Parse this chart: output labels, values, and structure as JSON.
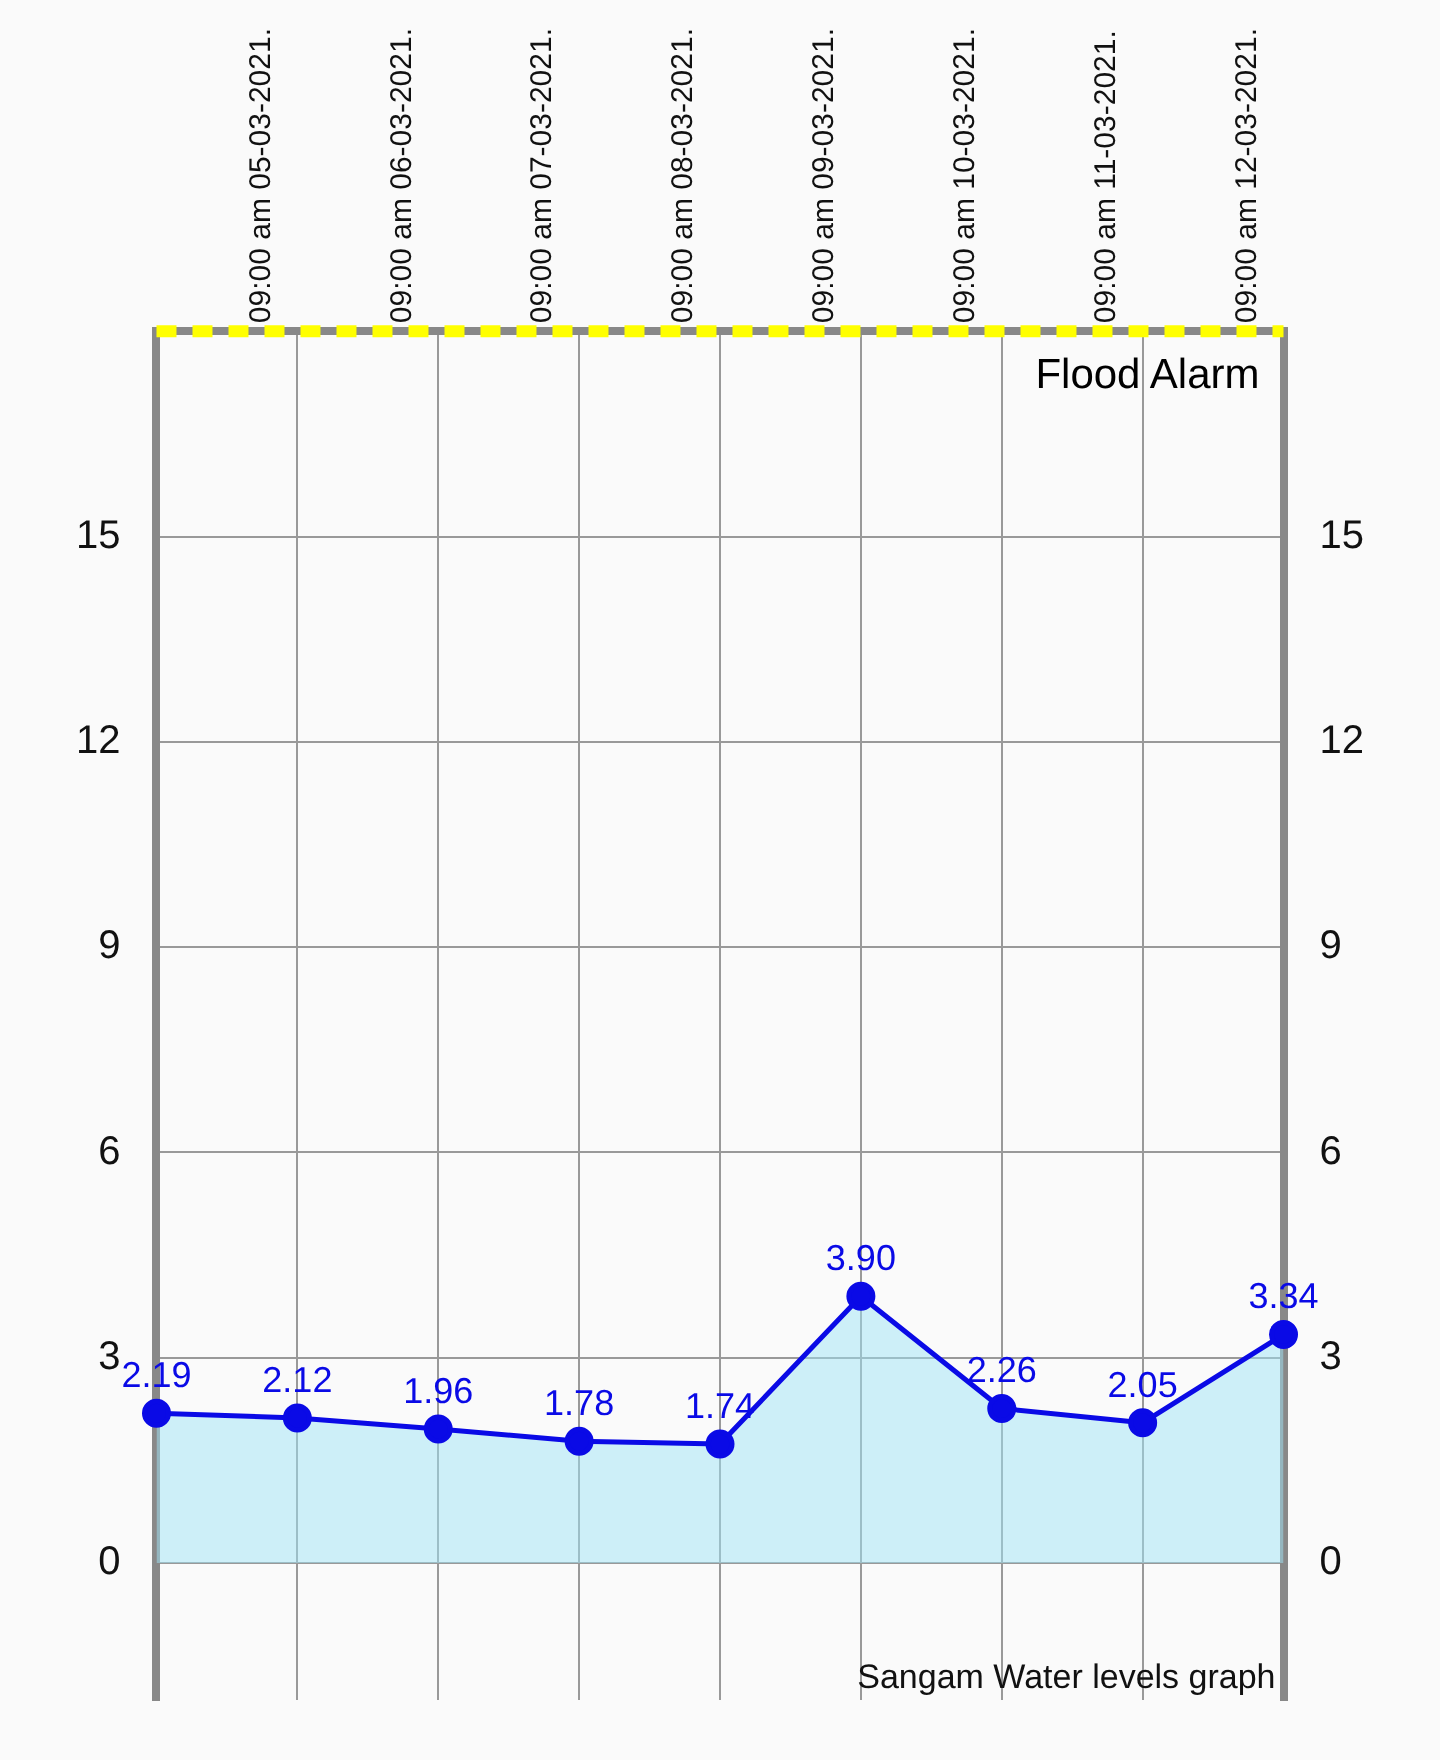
{
  "chart_data": {
    "type": "area",
    "categories": [
      null,
      "09:00 am 05-03-2021.",
      "09:00 am 06-03-2021.",
      "09:00 am 07-03-2021.",
      "09:00 am 08-03-2021.",
      "09:00 am 09-03-2021.",
      "09:00 am 10-03-2021.",
      "09:00 am 11-03-2021.",
      "09:00 am 12-03-2021."
    ],
    "series": [
      {
        "color": "#0a0ae6",
        "values": [
          2.19,
          2.12,
          1.96,
          1.78,
          1.74,
          3.9,
          2.26,
          2.05,
          3.34
        ],
        "value_labels": [
          "2.19",
          "2.12",
          "1.96",
          "1.78",
          "1.74",
          "3.90",
          "2.26",
          "2.05",
          "3.34"
        ]
      }
    ],
    "ylim": [
      -2,
      18
    ],
    "yticks": [
      0,
      3,
      6,
      9,
      12,
      15
    ],
    "y2lim": [
      -2,
      18
    ],
    "y2ticks": [
      0,
      3,
      6,
      9,
      12,
      15
    ],
    "ref_lines": [
      {
        "axis": "y",
        "value": 18,
        "label": "Flood Alarm",
        "color": "#ffff00",
        "line_style": "dashed"
      }
    ],
    "annotations": [
      "Sangam Water levels graph"
    ],
    "marker": "circle",
    "line_style": "solid",
    "grid": true,
    "legend": false
  }
}
